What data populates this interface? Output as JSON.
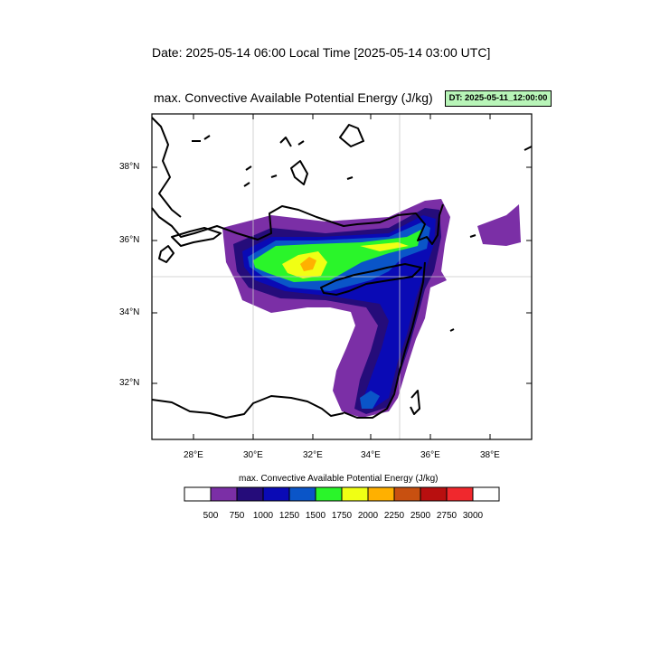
{
  "header": {
    "date_line": "Date: 2025-05-14  06:00 Local Time [2025-05-14  03:00 UTC]",
    "plot_title": "max. Convective Available Potential Energy   (J/kg)",
    "dt_badge": "DT: 2025-05-11_12:00:00"
  },
  "map": {
    "region": "Eastern Mediterranean",
    "lon_range": [
      26.6,
      39.4
    ],
    "lat_range": [
      30.4,
      39.4
    ],
    "lon_ticks": [
      "28°E",
      "30°E",
      "32°E",
      "34°E",
      "36°E",
      "38°E"
    ],
    "lat_ticks": [
      "38°N",
      "36°N",
      "34°N",
      "32°N"
    ],
    "gridlines": "on (30°E, 35°E, 35°N)",
    "coastline_color": "#000000"
  },
  "colorbar": {
    "title": "max. Convective Available Potential Energy  (J/kg)",
    "levels": [
      "500",
      "750",
      "1000",
      "1250",
      "1500",
      "1750",
      "2000",
      "2250",
      "2500",
      "2750",
      "3000"
    ],
    "colors": [
      "#ffffff",
      "#7b2fa6",
      "#250c7a",
      "#0a0ab5",
      "#0a55c8",
      "#2af52a",
      "#f0ff14",
      "#ffb000",
      "#c85010",
      "#b80f0f",
      "#f0282d",
      "#ffffff"
    ]
  }
}
